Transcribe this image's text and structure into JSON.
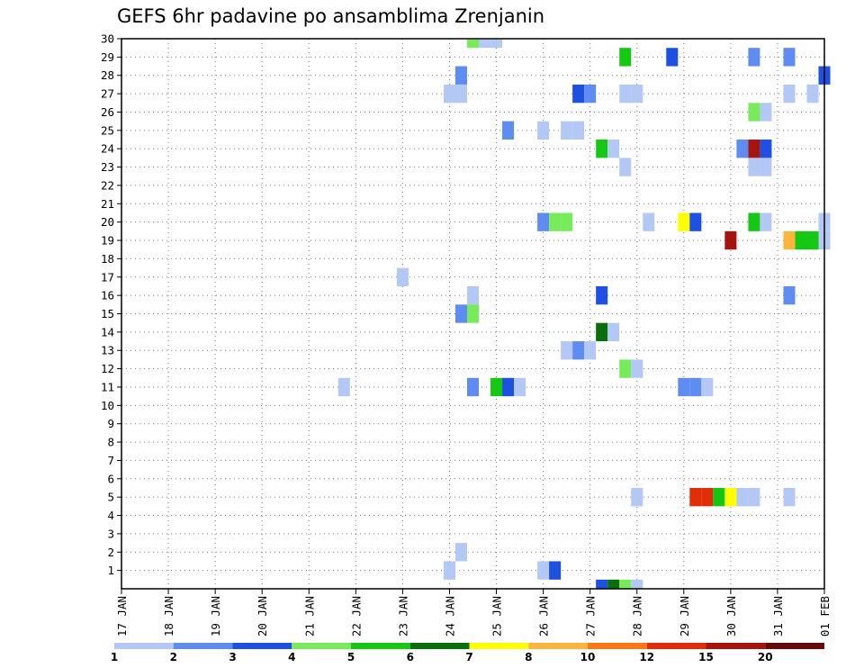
{
  "chart_data": {
    "type": "heatmap",
    "title": "GEFS 6hr padavine po ansamblima Zrenjanin",
    "y_ticks": [
      1,
      2,
      3,
      4,
      5,
      6,
      7,
      8,
      9,
      10,
      11,
      12,
      13,
      14,
      15,
      16,
      17,
      18,
      19,
      20,
      21,
      22,
      23,
      24,
      25,
      26,
      27,
      28,
      29,
      30
    ],
    "ylim": [
      0,
      30
    ],
    "x_ticks": [
      "17 JAN",
      "18 JAN",
      "19 JAN",
      "20 JAN",
      "21 JAN",
      "22 JAN",
      "23 JAN",
      "24 JAN",
      "25 JAN",
      "26 JAN",
      "27 JAN",
      "28 JAN",
      "29 JAN",
      "30 JAN",
      "31 JAN",
      "01 FEB"
    ],
    "grid": true,
    "legend": {
      "colors": [
        "#b4c8f5",
        "#5f8cf0",
        "#1e50e1",
        "#78eb5a",
        "#14c814",
        "#0a6e0a",
        "#ffff00",
        "#ffb43c",
        "#ff7814",
        "#e12d0a",
        "#a5140f",
        "#690a0a"
      ],
      "labels": [
        "1",
        "2",
        "3",
        "4",
        "5",
        "6",
        "7",
        "8",
        "10",
        "12",
        "15",
        "20"
      ]
    },
    "cells": [
      {
        "t": 7.5,
        "m": 30,
        "c": 3
      },
      {
        "t": 7.75,
        "m": 30,
        "c": 0
      },
      {
        "t": 8,
        "m": 30,
        "c": 0
      },
      {
        "t": 10.75,
        "m": 29,
        "c": 4
      },
      {
        "t": 11.75,
        "m": 29,
        "c": 2
      },
      {
        "t": 13.5,
        "m": 29,
        "c": 1
      },
      {
        "t": 14.25,
        "m": 29,
        "c": 1
      },
      {
        "t": 7.25,
        "m": 28,
        "c": 1
      },
      {
        "t": 15,
        "m": 28,
        "c": 2
      },
      {
        "t": 7,
        "m": 27,
        "c": 0
      },
      {
        "t": 7.25,
        "m": 27,
        "c": 0
      },
      {
        "t": 9.75,
        "m": 27,
        "c": 2
      },
      {
        "t": 10,
        "m": 27,
        "c": 1
      },
      {
        "t": 10.75,
        "m": 27,
        "c": 0
      },
      {
        "t": 11,
        "m": 27,
        "c": 0
      },
      {
        "t": 14.25,
        "m": 27,
        "c": 0
      },
      {
        "t": 14.75,
        "m": 27,
        "c": 0
      },
      {
        "t": 13.75,
        "m": 26,
        "c": 0
      },
      {
        "t": 13.5,
        "m": 26,
        "c": 3
      },
      {
        "t": 8.25,
        "m": 25,
        "c": 1
      },
      {
        "t": 9,
        "m": 25,
        "c": 0
      },
      {
        "t": 9.5,
        "m": 25,
        "c": 0
      },
      {
        "t": 9.75,
        "m": 25,
        "c": 0
      },
      {
        "t": 10.25,
        "m": 24,
        "c": 4
      },
      {
        "t": 10.5,
        "m": 24,
        "c": 0
      },
      {
        "t": 13.25,
        "m": 24,
        "c": 1
      },
      {
        "t": 13.5,
        "m": 24,
        "c": 10
      },
      {
        "t": 13.75,
        "m": 24,
        "c": 2
      },
      {
        "t": 10.75,
        "m": 23,
        "c": 0
      },
      {
        "t": 13.5,
        "m": 23,
        "c": 0
      },
      {
        "t": 13.75,
        "m": 23,
        "c": 0
      },
      {
        "t": 9,
        "m": 20,
        "c": 1
      },
      {
        "t": 9.25,
        "m": 20,
        "c": 3
      },
      {
        "t": 9.5,
        "m": 20,
        "c": 3
      },
      {
        "t": 11.25,
        "m": 20,
        "c": 0
      },
      {
        "t": 12,
        "m": 20,
        "c": 6
      },
      {
        "t": 12.25,
        "m": 20,
        "c": 2
      },
      {
        "t": 13.5,
        "m": 20,
        "c": 4
      },
      {
        "t": 13.75,
        "m": 20,
        "c": 0
      },
      {
        "t": 15,
        "m": 20,
        "c": 0
      },
      {
        "t": 13,
        "m": 19,
        "c": 10
      },
      {
        "t": 14.25,
        "m": 19,
        "c": 7
      },
      {
        "t": 14.5,
        "m": 19,
        "c": 4
      },
      {
        "t": 14.75,
        "m": 19,
        "c": 4
      },
      {
        "t": 15,
        "m": 19,
        "c": 0
      },
      {
        "t": 6,
        "m": 17,
        "c": 0
      },
      {
        "t": 7.5,
        "m": 16,
        "c": 0
      },
      {
        "t": 10.25,
        "m": 16,
        "c": 2
      },
      {
        "t": 14.25,
        "m": 16,
        "c": 1
      },
      {
        "t": 7.25,
        "m": 15,
        "c": 1
      },
      {
        "t": 7.5,
        "m": 15,
        "c": 3
      },
      {
        "t": 10.25,
        "m": 14,
        "c": 5
      },
      {
        "t": 10.5,
        "m": 14,
        "c": 0
      },
      {
        "t": 9.5,
        "m": 13,
        "c": 0
      },
      {
        "t": 9.75,
        "m": 13,
        "c": 1
      },
      {
        "t": 10,
        "m": 13,
        "c": 0
      },
      {
        "t": 10.75,
        "m": 12,
        "c": 3
      },
      {
        "t": 11,
        "m": 12,
        "c": 0
      },
      {
        "t": 4.75,
        "m": 11,
        "c": 0
      },
      {
        "t": 7.5,
        "m": 11,
        "c": 1
      },
      {
        "t": 8,
        "m": 11,
        "c": 4
      },
      {
        "t": 8.25,
        "m": 11,
        "c": 2
      },
      {
        "t": 8.5,
        "m": 11,
        "c": 0
      },
      {
        "t": 12,
        "m": 11,
        "c": 1
      },
      {
        "t": 12.25,
        "m": 11,
        "c": 1
      },
      {
        "t": 12.5,
        "m": 11,
        "c": 0
      },
      {
        "t": 11,
        "m": 5,
        "c": 0
      },
      {
        "t": 12.25,
        "m": 5,
        "c": 9
      },
      {
        "t": 12.5,
        "m": 5,
        "c": 9
      },
      {
        "t": 12.75,
        "m": 5,
        "c": 4
      },
      {
        "t": 13,
        "m": 5,
        "c": 6
      },
      {
        "t": 13.25,
        "m": 5,
        "c": 0
      },
      {
        "t": 13.5,
        "m": 5,
        "c": 0
      },
      {
        "t": 14.25,
        "m": 5,
        "c": 0
      },
      {
        "t": 7.25,
        "m": 2,
        "c": 0
      },
      {
        "t": 7,
        "m": 1,
        "c": 0
      },
      {
        "t": 9,
        "m": 1,
        "c": 0
      },
      {
        "t": 9.25,
        "m": 1,
        "c": 2
      },
      {
        "t": 10.25,
        "m": 0,
        "c": 2
      },
      {
        "t": 10.5,
        "m": 0,
        "c": 5
      },
      {
        "t": 10.75,
        "m": 0,
        "c": 3
      },
      {
        "t": 11,
        "m": 0,
        "c": 0
      }
    ]
  }
}
